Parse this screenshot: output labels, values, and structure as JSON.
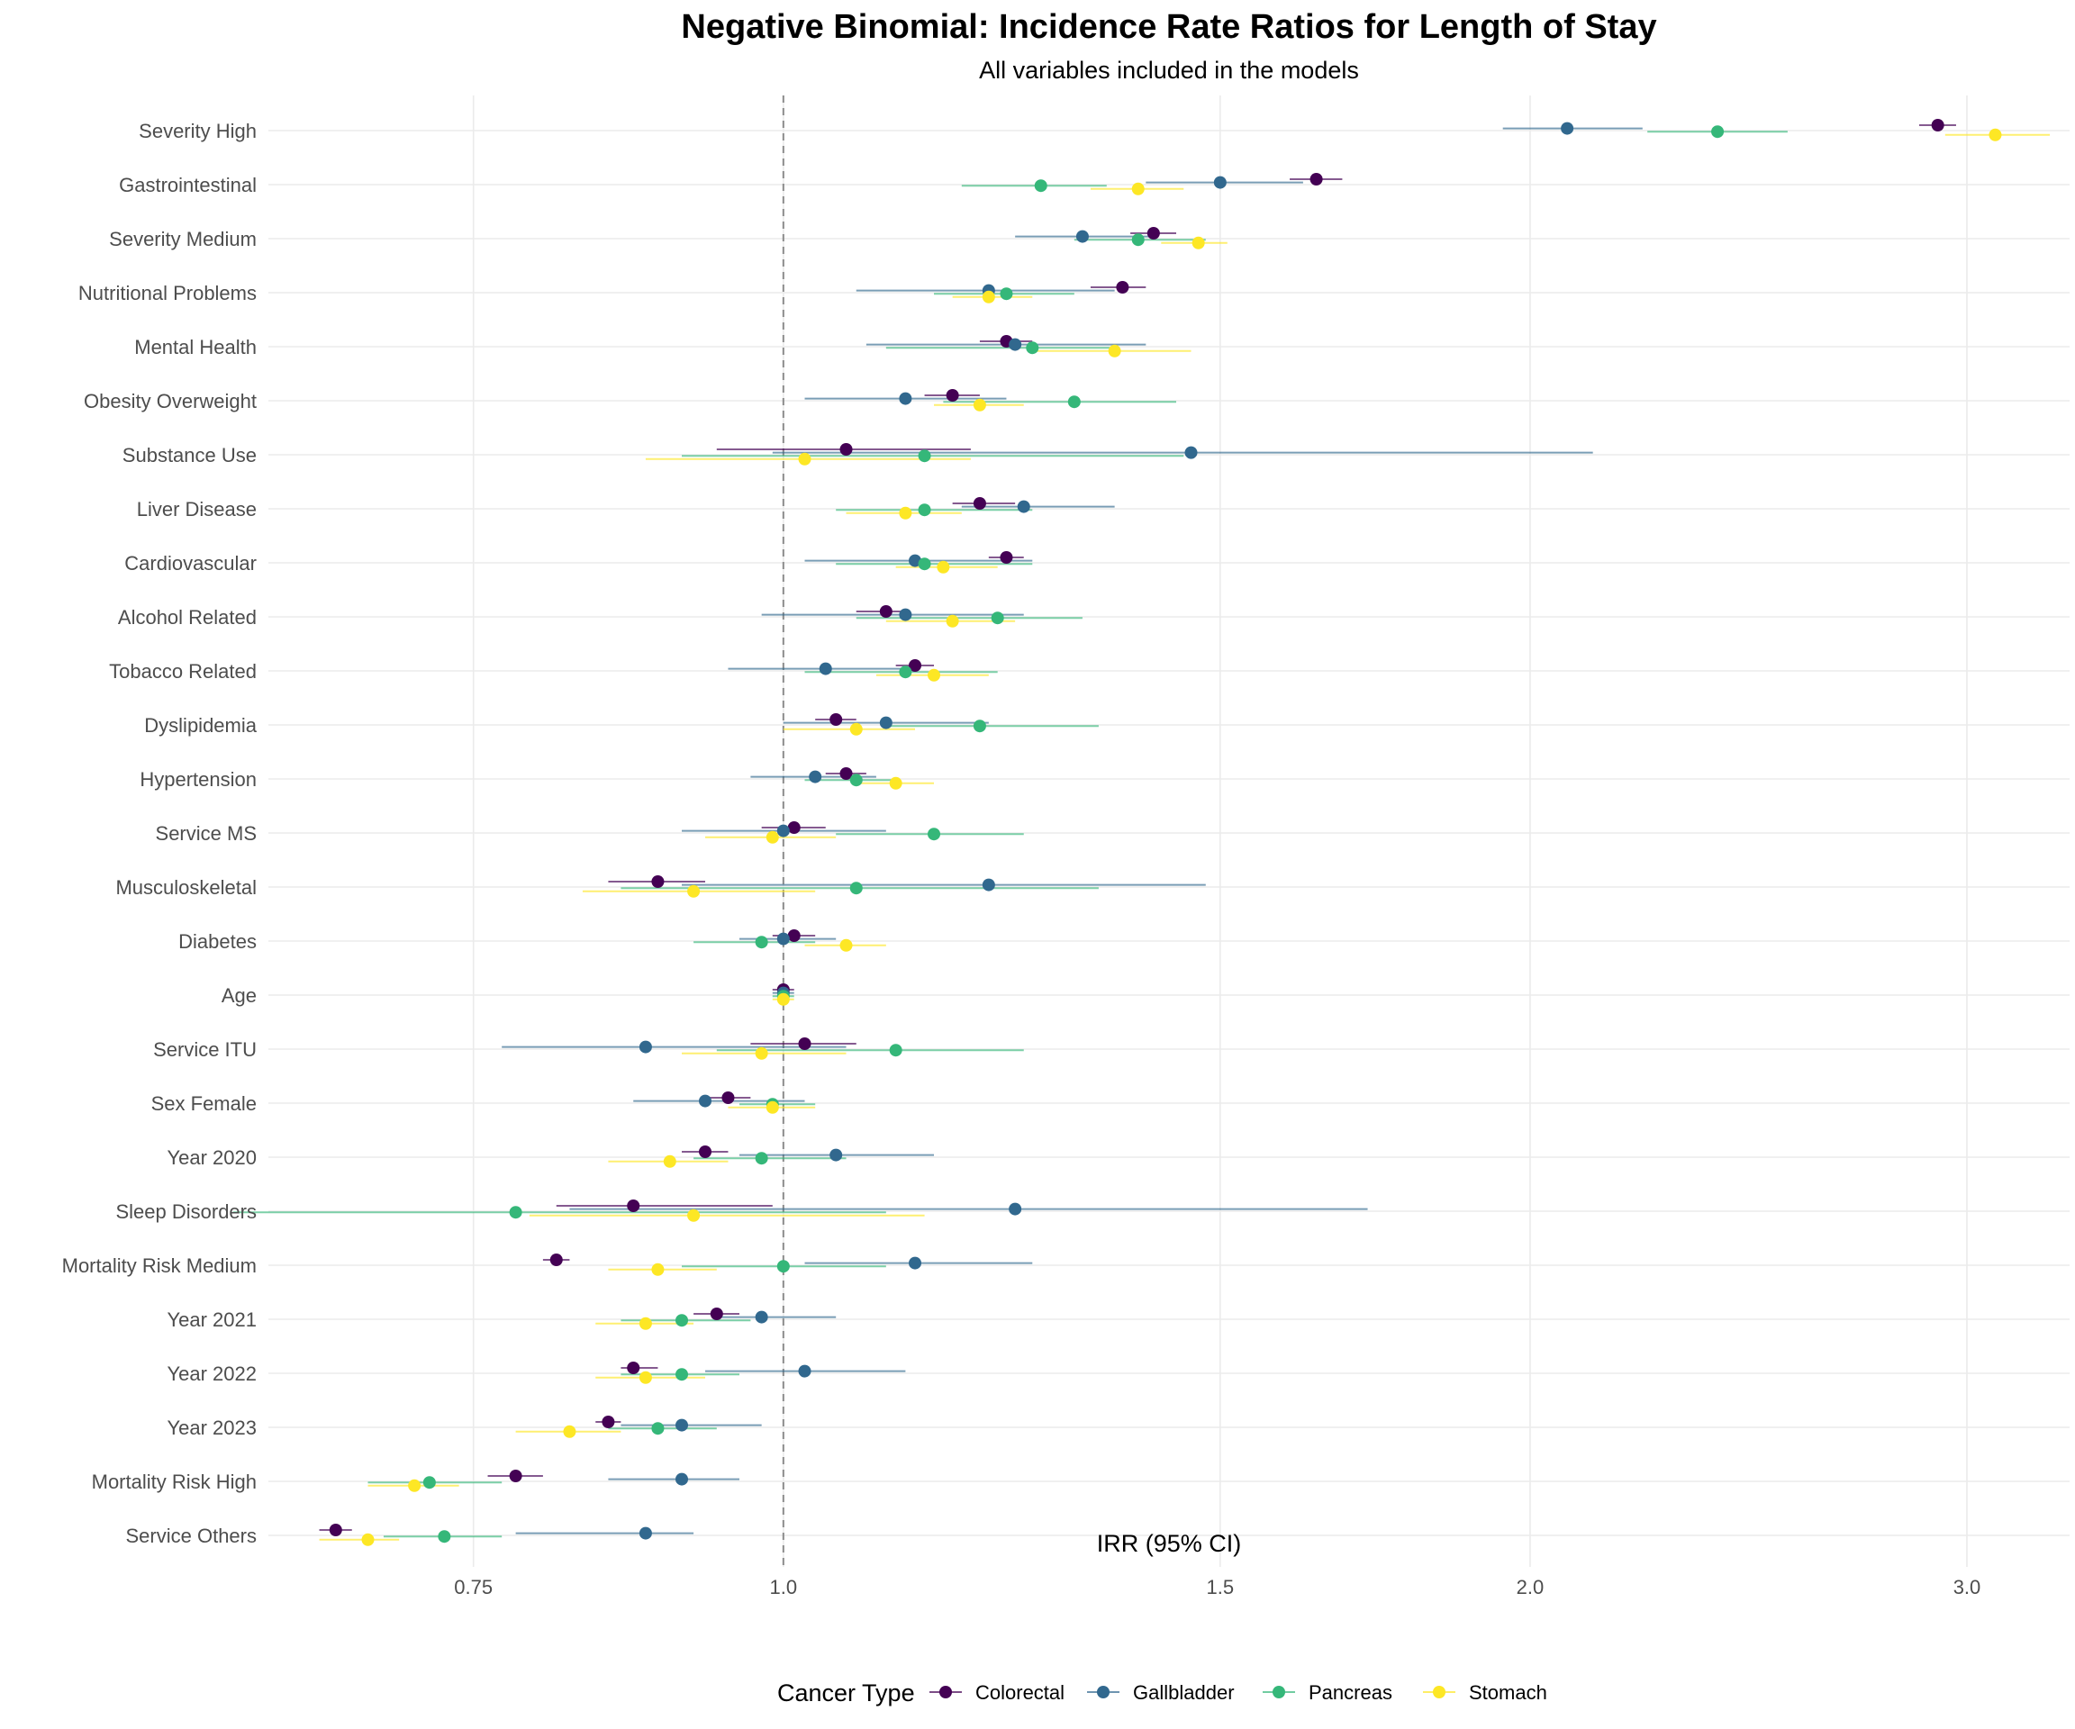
{
  "chart_data": {
    "type": "scatter",
    "subtype": "forest-plot",
    "title": "Negative Binomial: Incidence Rate Ratios for Length of Stay",
    "subtitle": "All variables included in the models",
    "xlabel": "IRR (95% CI)",
    "ylabel": "",
    "x_scale": "log",
    "xlim": [
      0.62,
      3.3
    ],
    "x_ticks": [
      0.75,
      1.0,
      1.5,
      2.0,
      3.0
    ],
    "x_tick_labels": [
      "0.75",
      "1.0",
      "1.5",
      "2.0",
      "3.0"
    ],
    "reference_line": 1.0,
    "grid": true,
    "legend": {
      "title": "Cancer Type",
      "position": "bottom",
      "entries": [
        "Colorectal",
        "Gallbladder",
        "Pancreas",
        "Stomach"
      ]
    },
    "colors": {
      "Colorectal": "#440154",
      "Gallbladder": "#31688e",
      "Pancreas": "#35b779",
      "Stomach": "#fde725"
    },
    "categories": [
      "Severity High",
      "Gastrointestinal",
      "Severity Medium",
      "Nutritional Problems",
      "Mental Health",
      "Obesity Overweight",
      "Substance Use",
      "Liver Disease",
      "Cardiovascular",
      "Alcohol Related",
      "Tobacco Related",
      "Dyslipidemia",
      "Hypertension",
      "Service MS",
      "Musculoskeletal",
      "Diabetes",
      "Age",
      "Service ITU",
      "Sex Female",
      "Year 2020",
      "Sleep Disorders",
      "Mortality Risk Medium",
      "Year 2021",
      "Year 2022",
      "Year 2023",
      "Mortality Risk High",
      "Service Others"
    ],
    "series": [
      {
        "name": "Colorectal",
        "irr": [
          2.92,
          1.64,
          1.41,
          1.37,
          1.23,
          1.17,
          1.06,
          1.2,
          1.23,
          1.1,
          1.13,
          1.05,
          1.06,
          1.01,
          0.89,
          1.01,
          1.0,
          1.02,
          0.95,
          0.93,
          0.87,
          0.81,
          0.94,
          0.87,
          0.85,
          0.78,
          0.66
        ],
        "lower": [
          2.87,
          1.6,
          1.38,
          1.33,
          1.2,
          1.14,
          0.94,
          1.17,
          1.21,
          1.07,
          1.11,
          1.03,
          1.04,
          0.98,
          0.85,
          0.99,
          0.99,
          0.97,
          0.93,
          0.91,
          0.81,
          0.8,
          0.92,
          0.86,
          0.84,
          0.76,
          0.65
        ],
        "upper": [
          2.97,
          1.68,
          1.44,
          1.4,
          1.26,
          1.2,
          1.19,
          1.24,
          1.25,
          1.12,
          1.15,
          1.07,
          1.08,
          1.04,
          0.93,
          1.03,
          1.01,
          1.07,
          0.97,
          0.95,
          0.99,
          0.82,
          0.96,
          0.89,
          0.86,
          0.8,
          0.67
        ],
        "y_offset": [
          0.14,
          0.14,
          0.14,
          0.14,
          0.14,
          0.14,
          0.14,
          0.14,
          0.14,
          0.14,
          0.14,
          0.14,
          0.14,
          0.14,
          0.14,
          0.14,
          0.14,
          0.14,
          0.14,
          0.14,
          0.14,
          0.14,
          0.14,
          0.14,
          0.14,
          0.14,
          0.14
        ]
      },
      {
        "name": "Gallbladder",
        "irr": [
          2.07,
          1.5,
          1.32,
          1.21,
          1.24,
          1.12,
          1.46,
          1.25,
          1.13,
          1.12,
          1.04,
          1.1,
          1.03,
          1.0,
          1.21,
          1.0,
          1.0,
          0.88,
          0.93,
          1.05,
          1.24,
          1.13,
          0.98,
          1.02,
          0.91,
          0.91,
          0.88
        ],
        "lower": [
          1.95,
          1.4,
          1.24,
          1.07,
          1.08,
          1.02,
          0.99,
          1.18,
          1.02,
          0.98,
          0.95,
          1.0,
          0.97,
          0.91,
          0.91,
          0.96,
          0.99,
          0.77,
          0.87,
          0.96,
          0.82,
          1.02,
          0.94,
          0.93,
          0.86,
          0.85,
          0.78
        ],
        "upper": [
          2.22,
          1.62,
          1.41,
          1.36,
          1.4,
          1.23,
          2.12,
          1.36,
          1.26,
          1.25,
          1.13,
          1.21,
          1.09,
          1.1,
          1.48,
          1.05,
          1.01,
          1.06,
          1.02,
          1.15,
          1.72,
          1.26,
          1.05,
          1.12,
          0.98,
          0.96,
          0.92
        ]
      },
      {
        "name": "Pancreas",
        "irr": [
          2.38,
          1.27,
          1.39,
          1.23,
          1.26,
          1.31,
          1.14,
          1.14,
          1.14,
          1.22,
          1.12,
          1.2,
          1.07,
          1.15,
          1.07,
          0.98,
          1.0,
          1.11,
          0.99,
          0.98,
          0.78,
          1.0,
          0.91,
          0.91,
          0.89,
          0.72,
          0.73
        ],
        "lower": [
          2.23,
          1.18,
          1.31,
          1.15,
          1.1,
          1.16,
          0.91,
          1.05,
          1.05,
          1.07,
          1.02,
          1.1,
          1.02,
          1.05,
          0.86,
          0.92,
          0.99,
          0.94,
          0.96,
          0.92,
          0.6,
          0.91,
          0.86,
          0.86,
          0.85,
          0.68,
          0.69
        ],
        "upper": [
          2.54,
          1.35,
          1.48,
          1.31,
          1.36,
          1.44,
          1.45,
          1.26,
          1.26,
          1.32,
          1.22,
          1.34,
          1.11,
          1.25,
          1.34,
          1.03,
          1.01,
          1.25,
          1.03,
          1.06,
          1.1,
          1.1,
          0.97,
          0.96,
          0.94,
          0.77,
          0.77
        ]
      },
      {
        "name": "Stomach",
        "irr": [
          3.08,
          1.39,
          1.47,
          1.21,
          1.36,
          1.2,
          1.02,
          1.12,
          1.16,
          1.17,
          1.15,
          1.07,
          1.11,
          0.99,
          0.92,
          1.06,
          1.0,
          0.98,
          0.99,
          0.9,
          0.92,
          0.89,
          0.88,
          0.88,
          0.82,
          0.71,
          0.68
        ],
        "lower": [
          2.94,
          1.33,
          1.42,
          1.17,
          1.26,
          1.15,
          0.88,
          1.06,
          1.11,
          1.1,
          1.09,
          1.0,
          1.07,
          0.93,
          0.83,
          1.02,
          0.99,
          0.91,
          0.95,
          0.85,
          0.79,
          0.85,
          0.84,
          0.84,
          0.78,
          0.68,
          0.65
        ],
        "upper": [
          3.24,
          1.45,
          1.51,
          1.26,
          1.46,
          1.25,
          1.19,
          1.18,
          1.22,
          1.24,
          1.21,
          1.13,
          1.15,
          1.05,
          1.03,
          1.1,
          1.01,
          1.06,
          1.03,
          0.95,
          1.14,
          0.94,
          0.92,
          0.93,
          0.86,
          0.74,
          0.7
        ]
      }
    ]
  }
}
